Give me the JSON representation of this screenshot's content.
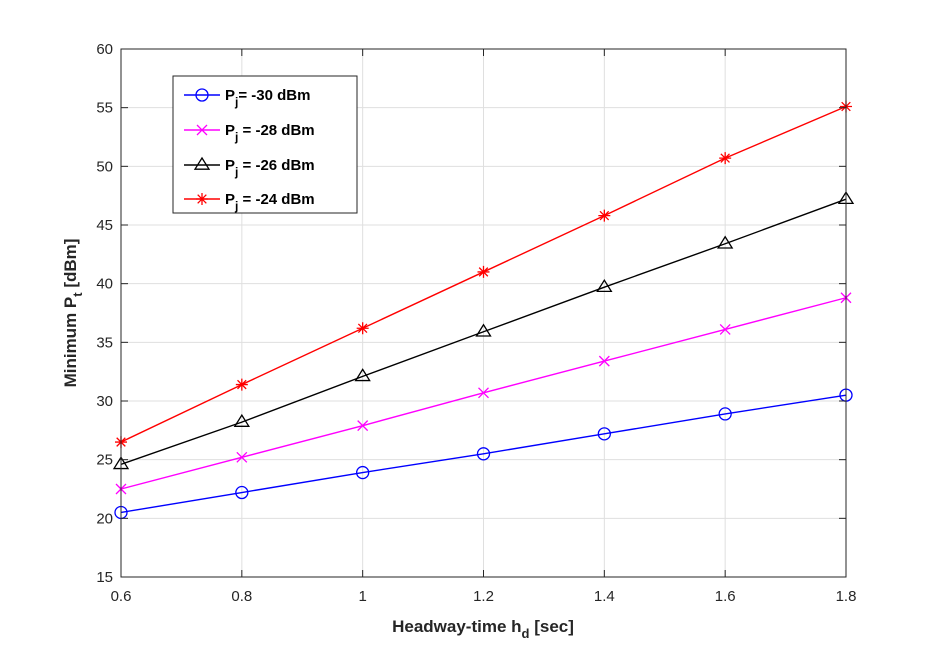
{
  "chart_data": {
    "type": "line",
    "title": "",
    "xlabel": "Headway-time h",
    "xlabel_sub": "d",
    "xlabel_suffix": " [sec]",
    "ylabel": "Minimum P",
    "ylabel_sub": "t",
    "ylabel_suffix": " [dBm]",
    "xlim": [
      0.6,
      1.8
    ],
    "ylim": [
      15,
      60
    ],
    "grid": true,
    "legend_position": "top-left",
    "x": [
      0.6,
      0.8,
      1.0,
      1.2,
      1.4,
      1.6,
      1.8
    ],
    "x_tick_labels": [
      "0.6",
      "0.8",
      "1",
      "1.2",
      "1.4",
      "1.6",
      "1.8"
    ],
    "y_tick_values": [
      15,
      20,
      25,
      30,
      35,
      40,
      45,
      50,
      55,
      60
    ],
    "y_tick_labels": [
      "15",
      "20",
      "25",
      "30",
      "35",
      "40",
      "45",
      "50",
      "55",
      "60"
    ],
    "series": [
      {
        "name": "P",
        "sub": "j",
        "label": "= -30 dBm",
        "color": "#0000ff",
        "marker": "circle",
        "values": [
          20.5,
          22.2,
          23.9,
          25.5,
          27.2,
          28.9,
          30.5
        ]
      },
      {
        "name": "P",
        "sub": "j",
        "label": " = -28 dBm",
        "color": "#ff00ff",
        "marker": "x",
        "values": [
          22.5,
          25.2,
          27.9,
          30.7,
          33.4,
          36.1,
          38.8
        ]
      },
      {
        "name": "P",
        "sub": "j",
        "label": " = -26 dBm",
        "color": "#000000",
        "marker": "triangle",
        "values": [
          24.6,
          28.2,
          32.1,
          35.9,
          39.7,
          43.4,
          47.2
        ]
      },
      {
        "name": "P",
        "sub": "j",
        "label": " = -24 dBm",
        "color": "#ff0000",
        "marker": "asterisk",
        "values": [
          26.5,
          31.4,
          36.2,
          41.0,
          45.8,
          50.7,
          55.1
        ]
      }
    ]
  }
}
